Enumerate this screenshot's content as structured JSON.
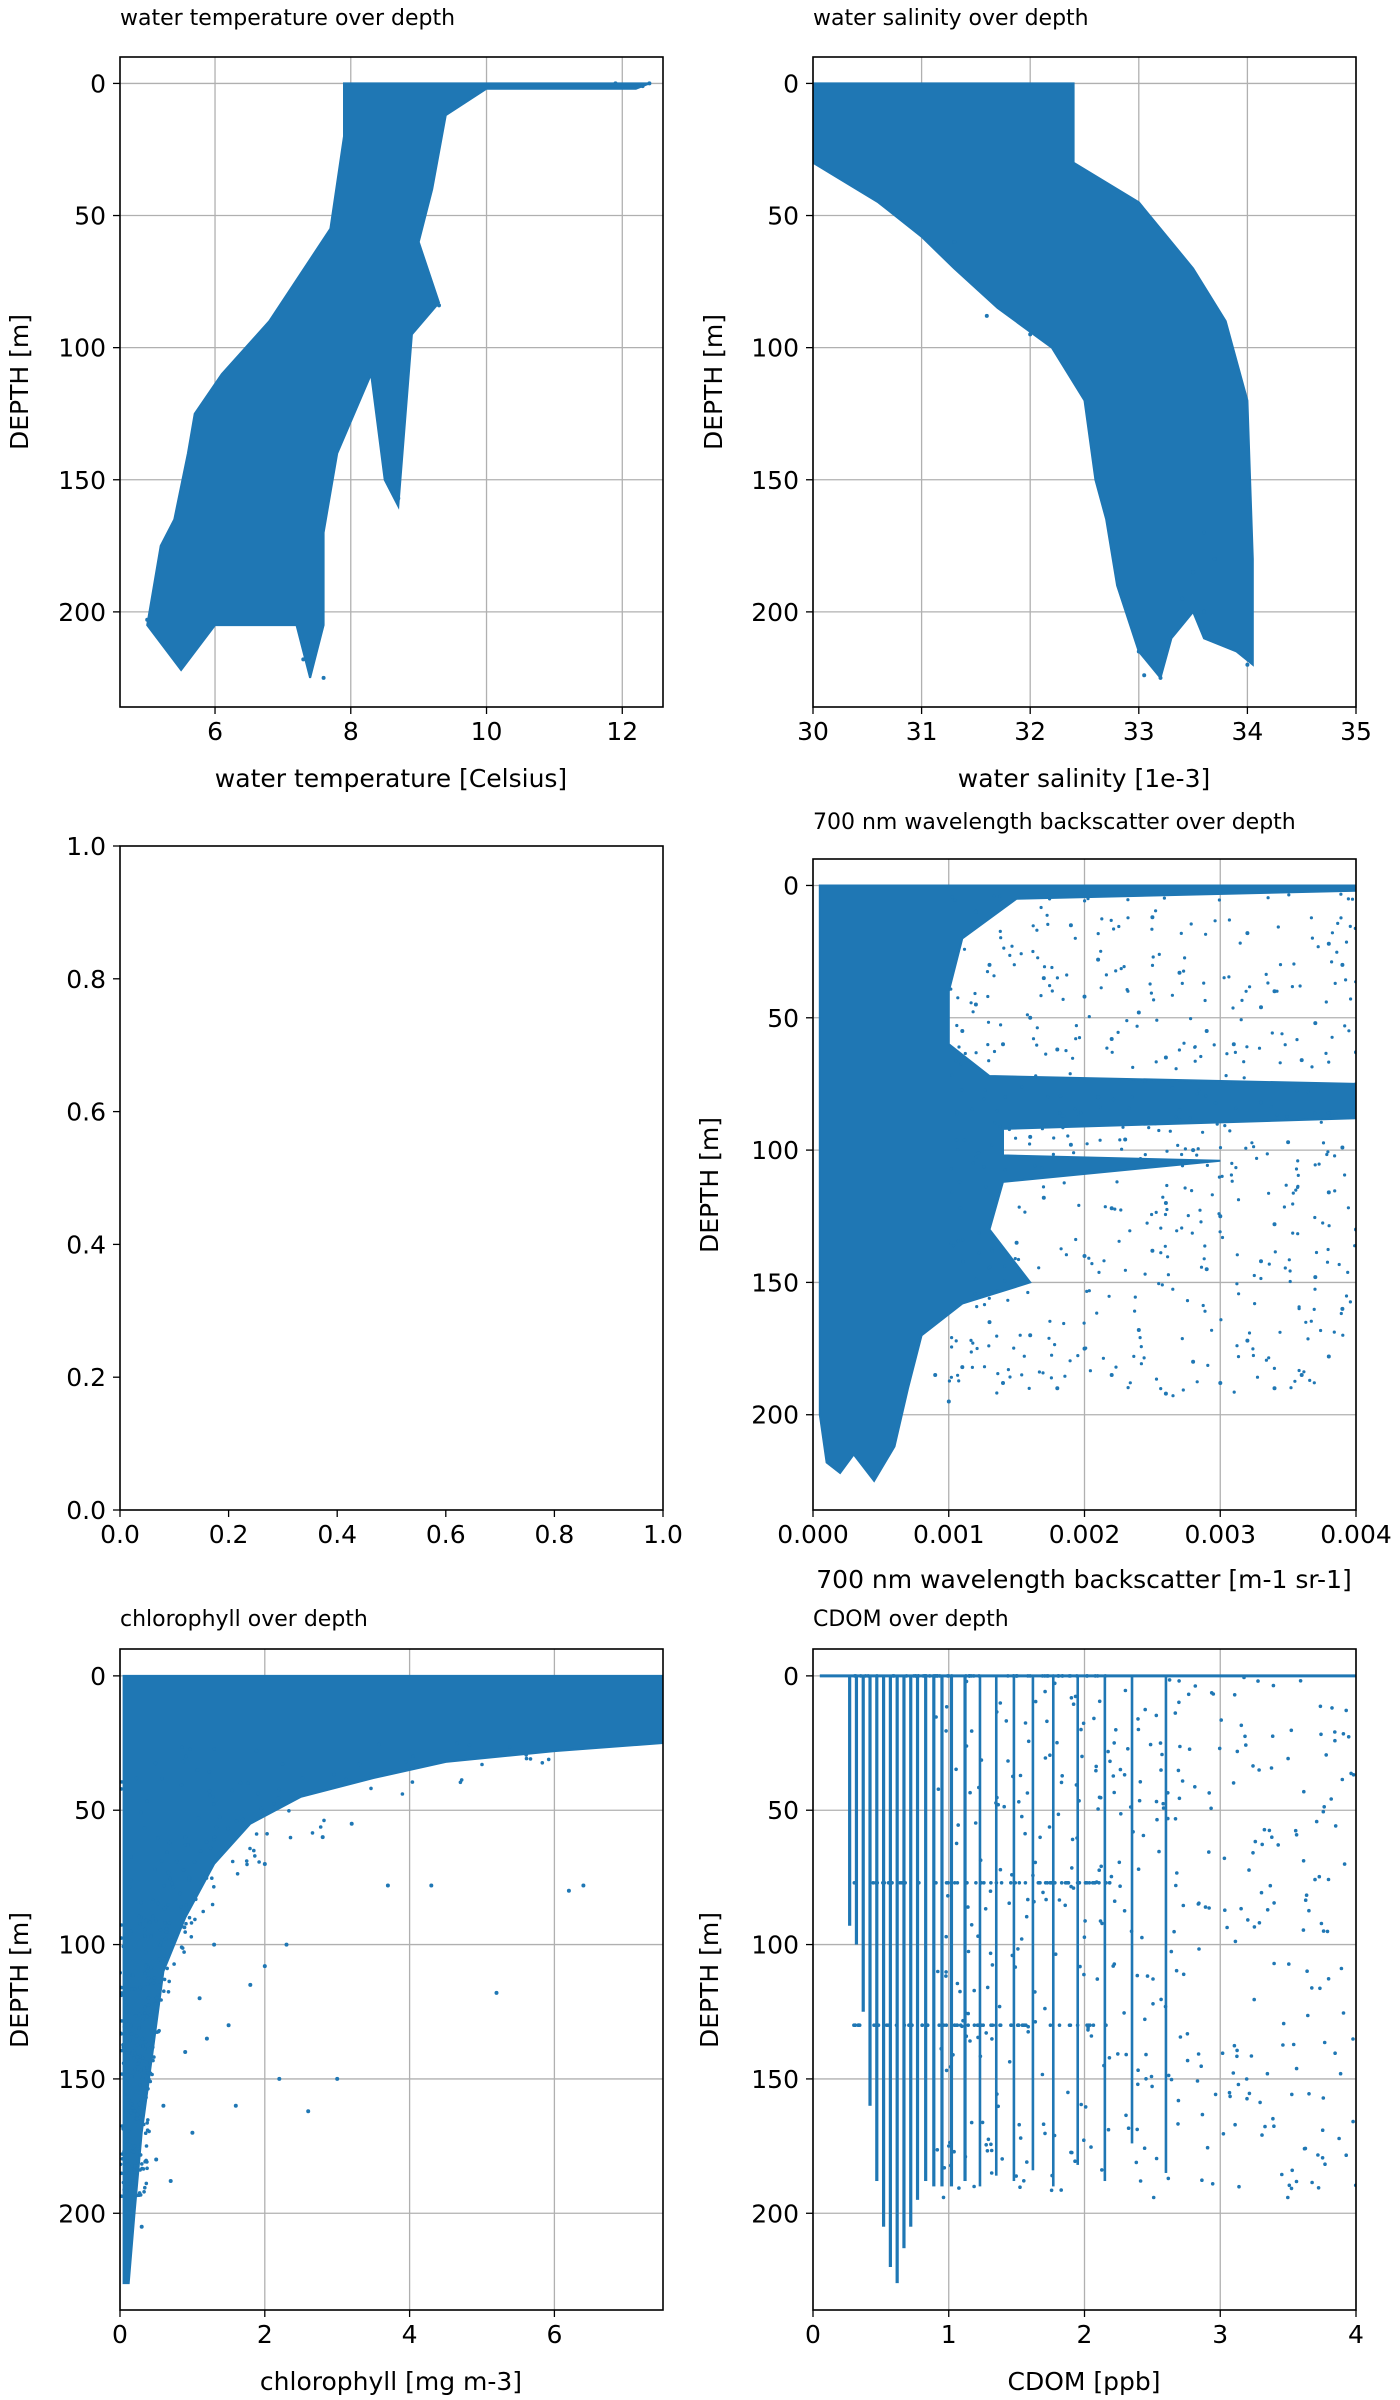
{
  "figure": {
    "background": "#ffffff",
    "point_color": "#1f77b4",
    "grid_color": "#b0b0b0"
  },
  "chart_data": [
    {
      "type": "scatter",
      "title": "water temperature over depth",
      "xlabel": "water temperature [Celsius]",
      "ylabel": "DEPTH [m]",
      "xlim": [
        4.6,
        12.6
      ],
      "ylim": [
        236,
        -10
      ],
      "y_inverted": true,
      "grid": true,
      "xticks": [
        6,
        8,
        10,
        12
      ],
      "yticks": [
        0,
        50,
        100,
        150,
        200
      ],
      "envelope": [
        [
          8.0,
          0
        ],
        [
          12.4,
          0
        ],
        [
          12.2,
          2
        ],
        [
          10.0,
          2
        ],
        [
          9.4,
          12
        ],
        [
          9.2,
          40
        ],
        [
          9.0,
          60
        ],
        [
          9.3,
          83
        ],
        [
          8.9,
          95
        ],
        [
          8.7,
          160
        ],
        [
          8.5,
          150
        ],
        [
          8.3,
          110
        ],
        [
          7.8,
          140
        ],
        [
          7.6,
          170
        ],
        [
          7.6,
          205
        ],
        [
          7.4,
          225
        ],
        [
          7.2,
          205
        ],
        [
          6.0,
          205
        ],
        [
          5.5,
          222
        ],
        [
          5.0,
          205
        ],
        [
          5.2,
          175
        ],
        [
          5.4,
          165
        ],
        [
          5.6,
          140
        ],
        [
          5.7,
          125
        ],
        [
          6.1,
          110
        ],
        [
          6.8,
          90
        ],
        [
          7.7,
          55
        ],
        [
          7.9,
          20
        ],
        [
          7.9,
          0
        ]
      ],
      "points": [
        [
          12.4,
          0
        ],
        [
          12.3,
          1
        ],
        [
          11.9,
          0
        ],
        [
          9.3,
          84
        ],
        [
          8.7,
          157
        ],
        [
          7.3,
          218
        ],
        [
          5.5,
          221
        ],
        [
          5.0,
          203
        ],
        [
          7.6,
          225
        ]
      ]
    },
    {
      "type": "scatter",
      "title": "water salinity over depth",
      "xlabel": "water salinity [1e-3]",
      "ylabel": "DEPTH [m]",
      "xlim": [
        30,
        35
      ],
      "ylim": [
        236,
        -10
      ],
      "y_inverted": true,
      "grid": true,
      "xticks": [
        30,
        31,
        32,
        33,
        34,
        35
      ],
      "yticks": [
        0,
        50,
        100,
        150,
        200
      ],
      "envelope": [
        [
          30.0,
          0
        ],
        [
          32.4,
          0
        ],
        [
          32.4,
          30
        ],
        [
          33.0,
          45
        ],
        [
          33.5,
          70
        ],
        [
          33.8,
          90
        ],
        [
          34.0,
          120
        ],
        [
          34.05,
          180
        ],
        [
          34.05,
          220
        ],
        [
          33.9,
          215
        ],
        [
          33.6,
          210
        ],
        [
          33.5,
          200
        ],
        [
          33.3,
          210
        ],
        [
          33.2,
          225
        ],
        [
          33.0,
          215
        ],
        [
          32.8,
          190
        ],
        [
          32.7,
          165
        ],
        [
          32.6,
          150
        ],
        [
          32.5,
          120
        ],
        [
          32.2,
          100
        ],
        [
          31.7,
          85
        ],
        [
          31.3,
          70
        ],
        [
          31.0,
          58
        ],
        [
          30.6,
          45
        ],
        [
          30.2,
          35
        ],
        [
          30.0,
          30
        ]
      ],
      "points": [
        [
          33.2,
          225
        ],
        [
          33.05,
          224
        ],
        [
          34.0,
          220
        ],
        [
          33.0,
          215
        ],
        [
          31.3,
          60
        ],
        [
          31.6,
          88
        ],
        [
          32.0,
          95
        ],
        [
          33.6,
          170
        ],
        [
          33.7,
          180
        ],
        [
          33.5,
          185
        ],
        [
          33.4,
          195
        ],
        [
          33.6,
          200
        ]
      ]
    },
    {
      "type": "scatter",
      "title": "",
      "xlabel": "",
      "ylabel": "",
      "xlim": [
        0,
        1
      ],
      "ylim": [
        0,
        1
      ],
      "y_inverted": false,
      "grid": false,
      "xticks": [
        0.0,
        0.2,
        0.4,
        0.6,
        0.8,
        1.0
      ],
      "yticks": [
        0.0,
        0.2,
        0.4,
        0.6,
        0.8,
        1.0
      ],
      "envelope": [],
      "points": []
    },
    {
      "type": "scatter",
      "title": "700 nm wavelength backscatter over depth",
      "xlabel": "700 nm wavelength backscatter [m-1 sr-1]",
      "ylabel": "DEPTH [m]",
      "xlim": [
        0.0,
        0.004
      ],
      "ylim": [
        236,
        -10
      ],
      "y_inverted": true,
      "grid": true,
      "xticks": [
        0.0,
        0.001,
        0.002,
        0.003,
        0.004
      ],
      "yticks": [
        0,
        50,
        100,
        150,
        200
      ],
      "envelope": [
        [
          5e-05,
          0
        ],
        [
          0.004,
          0
        ],
        [
          0.004,
          2
        ],
        [
          0.0015,
          5
        ],
        [
          0.0011,
          20
        ],
        [
          0.001,
          40
        ],
        [
          0.001,
          60
        ],
        [
          0.0013,
          72
        ],
        [
          0.004,
          75
        ],
        [
          0.004,
          88
        ],
        [
          0.0014,
          92
        ],
        [
          0.0014,
          102
        ],
        [
          0.003,
          104
        ],
        [
          0.0014,
          112
        ],
        [
          0.0013,
          130
        ],
        [
          0.0016,
          150
        ],
        [
          0.0011,
          158
        ],
        [
          0.0008,
          170
        ],
        [
          0.0007,
          190
        ],
        [
          0.0006,
          212
        ],
        [
          0.00045,
          225
        ],
        [
          0.0003,
          215
        ],
        [
          0.0002,
          222
        ],
        [
          0.0001,
          218
        ],
        [
          5e-05,
          200
        ]
      ],
      "points": [
        [
          0.0012,
          10
        ],
        [
          0.0019,
          15
        ],
        [
          0.0025,
          12
        ],
        [
          0.0032,
          18
        ],
        [
          0.0038,
          22
        ],
        [
          0.0013,
          30
        ],
        [
          0.0017,
          35
        ],
        [
          0.0021,
          28
        ],
        [
          0.0027,
          33
        ],
        [
          0.0034,
          40
        ],
        [
          0.0039,
          30
        ],
        [
          0.0012,
          45
        ],
        [
          0.0016,
          50
        ],
        [
          0.002,
          42
        ],
        [
          0.0024,
          48
        ],
        [
          0.0029,
          55
        ],
        [
          0.0033,
          46
        ],
        [
          0.0037,
          52
        ],
        [
          0.0011,
          55
        ],
        [
          0.0014,
          60
        ],
        [
          0.0018,
          62
        ],
        [
          0.0022,
          58
        ],
        [
          0.0026,
          65
        ],
        [
          0.0031,
          60
        ],
        [
          0.0036,
          66
        ],
        [
          0.004,
          63
        ],
        [
          0.0016,
          95
        ],
        [
          0.0019,
          98
        ],
        [
          0.0023,
          96
        ],
        [
          0.0028,
          100
        ],
        [
          0.0035,
          97
        ],
        [
          0.0039,
          99
        ],
        [
          0.0017,
          118
        ],
        [
          0.0022,
          122
        ],
        [
          0.0026,
          120
        ],
        [
          0.003,
          125
        ],
        [
          0.0034,
          128
        ],
        [
          0.0038,
          116
        ],
        [
          0.0015,
          135
        ],
        [
          0.002,
          140
        ],
        [
          0.0025,
          138
        ],
        [
          0.0029,
          145
        ],
        [
          0.0033,
          142
        ],
        [
          0.0037,
          148
        ],
        [
          0.004,
          130
        ],
        [
          0.0013,
          165
        ],
        [
          0.0016,
          170
        ],
        [
          0.002,
          175
        ],
        [
          0.0024,
          168
        ],
        [
          0.0028,
          180
        ],
        [
          0.0032,
          172
        ],
        [
          0.0036,
          185
        ],
        [
          0.0039,
          160
        ],
        [
          0.0011,
          182
        ],
        [
          0.0014,
          188
        ],
        [
          0.0018,
          190
        ],
        [
          0.0022,
          185
        ],
        [
          0.0026,
          192
        ],
        [
          0.003,
          188
        ],
        [
          0.0034,
          190
        ],
        [
          0.0038,
          178
        ],
        [
          0.0021,
          80
        ],
        [
          0.0027,
          85
        ],
        [
          0.0033,
          82
        ],
        [
          0.0038,
          86
        ],
        [
          0.001,
          195
        ],
        [
          0.0009,
          185
        ]
      ]
    },
    {
      "type": "scatter",
      "title": "chlorophyll over depth",
      "xlabel": "chlorophyll [mg m-3]",
      "ylabel": "DEPTH [m]",
      "xlim": [
        0,
        7.5
      ],
      "ylim": [
        236,
        -10
      ],
      "y_inverted": true,
      "grid": true,
      "xticks": [
        0,
        2,
        4,
        6
      ],
      "yticks": [
        0,
        50,
        100,
        150,
        200
      ],
      "envelope": [
        [
          0.05,
          0
        ],
        [
          7.5,
          0
        ],
        [
          7.5,
          25
        ],
        [
          6.0,
          28
        ],
        [
          4.5,
          32
        ],
        [
          3.5,
          38
        ],
        [
          2.5,
          45
        ],
        [
          1.8,
          55
        ],
        [
          1.3,
          70
        ],
        [
          0.9,
          90
        ],
        [
          0.6,
          110
        ],
        [
          0.45,
          140
        ],
        [
          0.3,
          170
        ],
        [
          0.2,
          200
        ],
        [
          0.12,
          226
        ],
        [
          0.05,
          226
        ],
        [
          0.05,
          120
        ]
      ],
      "points": [
        [
          3.7,
          78
        ],
        [
          4.3,
          78
        ],
        [
          6.4,
          78
        ],
        [
          6.2,
          80
        ],
        [
          5.2,
          118
        ],
        [
          2.3,
          100
        ],
        [
          1.3,
          100
        ],
        [
          2.2,
          150
        ],
        [
          3.0,
          150
        ],
        [
          1.6,
          160
        ],
        [
          2.6,
          162
        ],
        [
          0.7,
          188
        ],
        [
          1.0,
          170
        ],
        [
          1.2,
          135
        ],
        [
          1.5,
          130
        ],
        [
          0.9,
          140
        ],
        [
          1.8,
          115
        ],
        [
          2.0,
          108
        ],
        [
          1.1,
          120
        ],
        [
          0.6,
          160
        ],
        [
          0.5,
          180
        ],
        [
          0.3,
          205
        ],
        [
          0.9,
          60
        ],
        [
          2.8,
          60
        ],
        [
          3.2,
          55
        ],
        [
          2.0,
          70
        ]
      ]
    },
    {
      "type": "scatter",
      "title": "CDOM over depth",
      "xlabel": "CDOM [ppb]",
      "ylabel": "DEPTH [m]",
      "xlim": [
        0,
        4
      ],
      "ylim": [
        236,
        -10
      ],
      "y_inverted": true,
      "grid": true,
      "xticks": [
        0,
        1,
        2,
        3,
        4
      ],
      "yticks": [
        0,
        50,
        100,
        150,
        200
      ],
      "envelope": [],
      "points": [],
      "stripes": [
        [
          0.27,
          0,
          93
        ],
        [
          0.32,
          0,
          100
        ],
        [
          0.37,
          0,
          125
        ],
        [
          0.42,
          0,
          160
        ],
        [
          0.47,
          0,
          188
        ],
        [
          0.52,
          0,
          205
        ],
        [
          0.57,
          0,
          220
        ],
        [
          0.62,
          0,
          226
        ],
        [
          0.67,
          0,
          213
        ],
        [
          0.72,
          0,
          205
        ],
        [
          0.77,
          0,
          195
        ],
        [
          0.83,
          0,
          188
        ],
        [
          0.89,
          0,
          190
        ],
        [
          0.95,
          0,
          190
        ],
        [
          1.02,
          0,
          190
        ],
        [
          1.12,
          0,
          188
        ],
        [
          1.23,
          0,
          190
        ],
        [
          1.35,
          0,
          186
        ],
        [
          1.48,
          0,
          188
        ],
        [
          1.62,
          0,
          184
        ],
        [
          1.77,
          0,
          190
        ],
        [
          1.95,
          0,
          182
        ],
        [
          2.15,
          0,
          188
        ],
        [
          2.35,
          0,
          174
        ],
        [
          2.6,
          0,
          185
        ]
      ],
      "row_bands": [
        0,
        77,
        130
      ]
    }
  ]
}
